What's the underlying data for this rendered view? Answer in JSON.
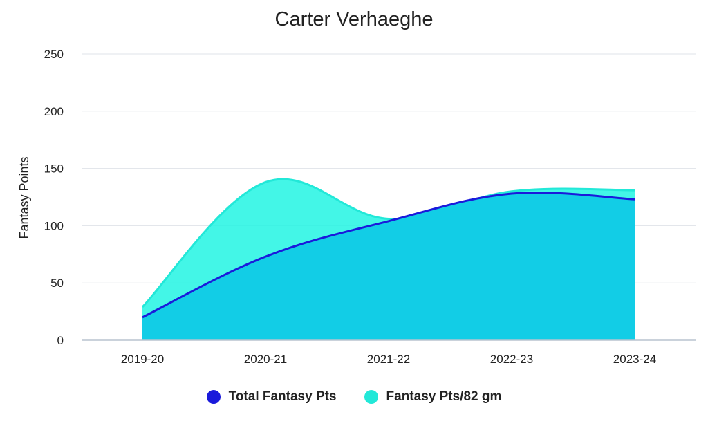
{
  "chart_data": {
    "type": "area",
    "title": "Carter Verhaeghe",
    "xlabel": "",
    "ylabel": "Fantasy Points",
    "categories": [
      "2019-20",
      "2020-21",
      "2021-22",
      "2022-23",
      "2023-24"
    ],
    "ylim": [
      0,
      250
    ],
    "yticks": [
      0,
      50,
      100,
      150,
      200,
      250
    ],
    "grid": true,
    "legend_position": "bottom",
    "series": [
      {
        "name": "Total Fantasy Pts",
        "values": [
          20,
          73,
          104,
          128,
          123
        ],
        "color": "#1a1adb",
        "fill": "#12cde6"
      },
      {
        "name": "Fantasy Pts/82 gm",
        "values": [
          29,
          138,
          106,
          130,
          131
        ],
        "color": "#22e8d8",
        "fill": "#22f5e3"
      }
    ]
  }
}
